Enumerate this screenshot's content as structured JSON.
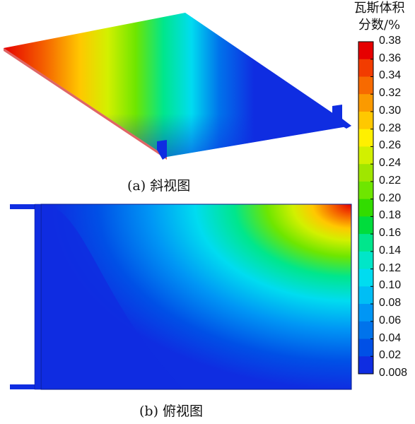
{
  "captions": {
    "a": "(a) 斜视图",
    "b": "(b) 俯视图"
  },
  "colorbar": {
    "title_line1": "瓦斯体积",
    "title_line2": "分数/%",
    "ticks": [
      "0.38",
      "0.36",
      "0.34",
      "0.32",
      "0.30",
      "0.28",
      "0.26",
      "0.24",
      "0.22",
      "0.20",
      "0.18",
      "0.16",
      "0.14",
      "0.12",
      "0.10",
      "0.08",
      "0.06",
      "0.04",
      "0.02",
      "0.008"
    ],
    "colors": [
      "#e60000",
      "#f23c00",
      "#f76a00",
      "#fb9a00",
      "#ffc800",
      "#fff000",
      "#d2f000",
      "#a0e600",
      "#6ee600",
      "#32dc00",
      "#00dc3c",
      "#00e68c",
      "#00e6c8",
      "#00dcf0",
      "#00bef5",
      "#0096f5",
      "#0073eb",
      "#0050e6",
      "#0f2de1"
    ]
  }
}
